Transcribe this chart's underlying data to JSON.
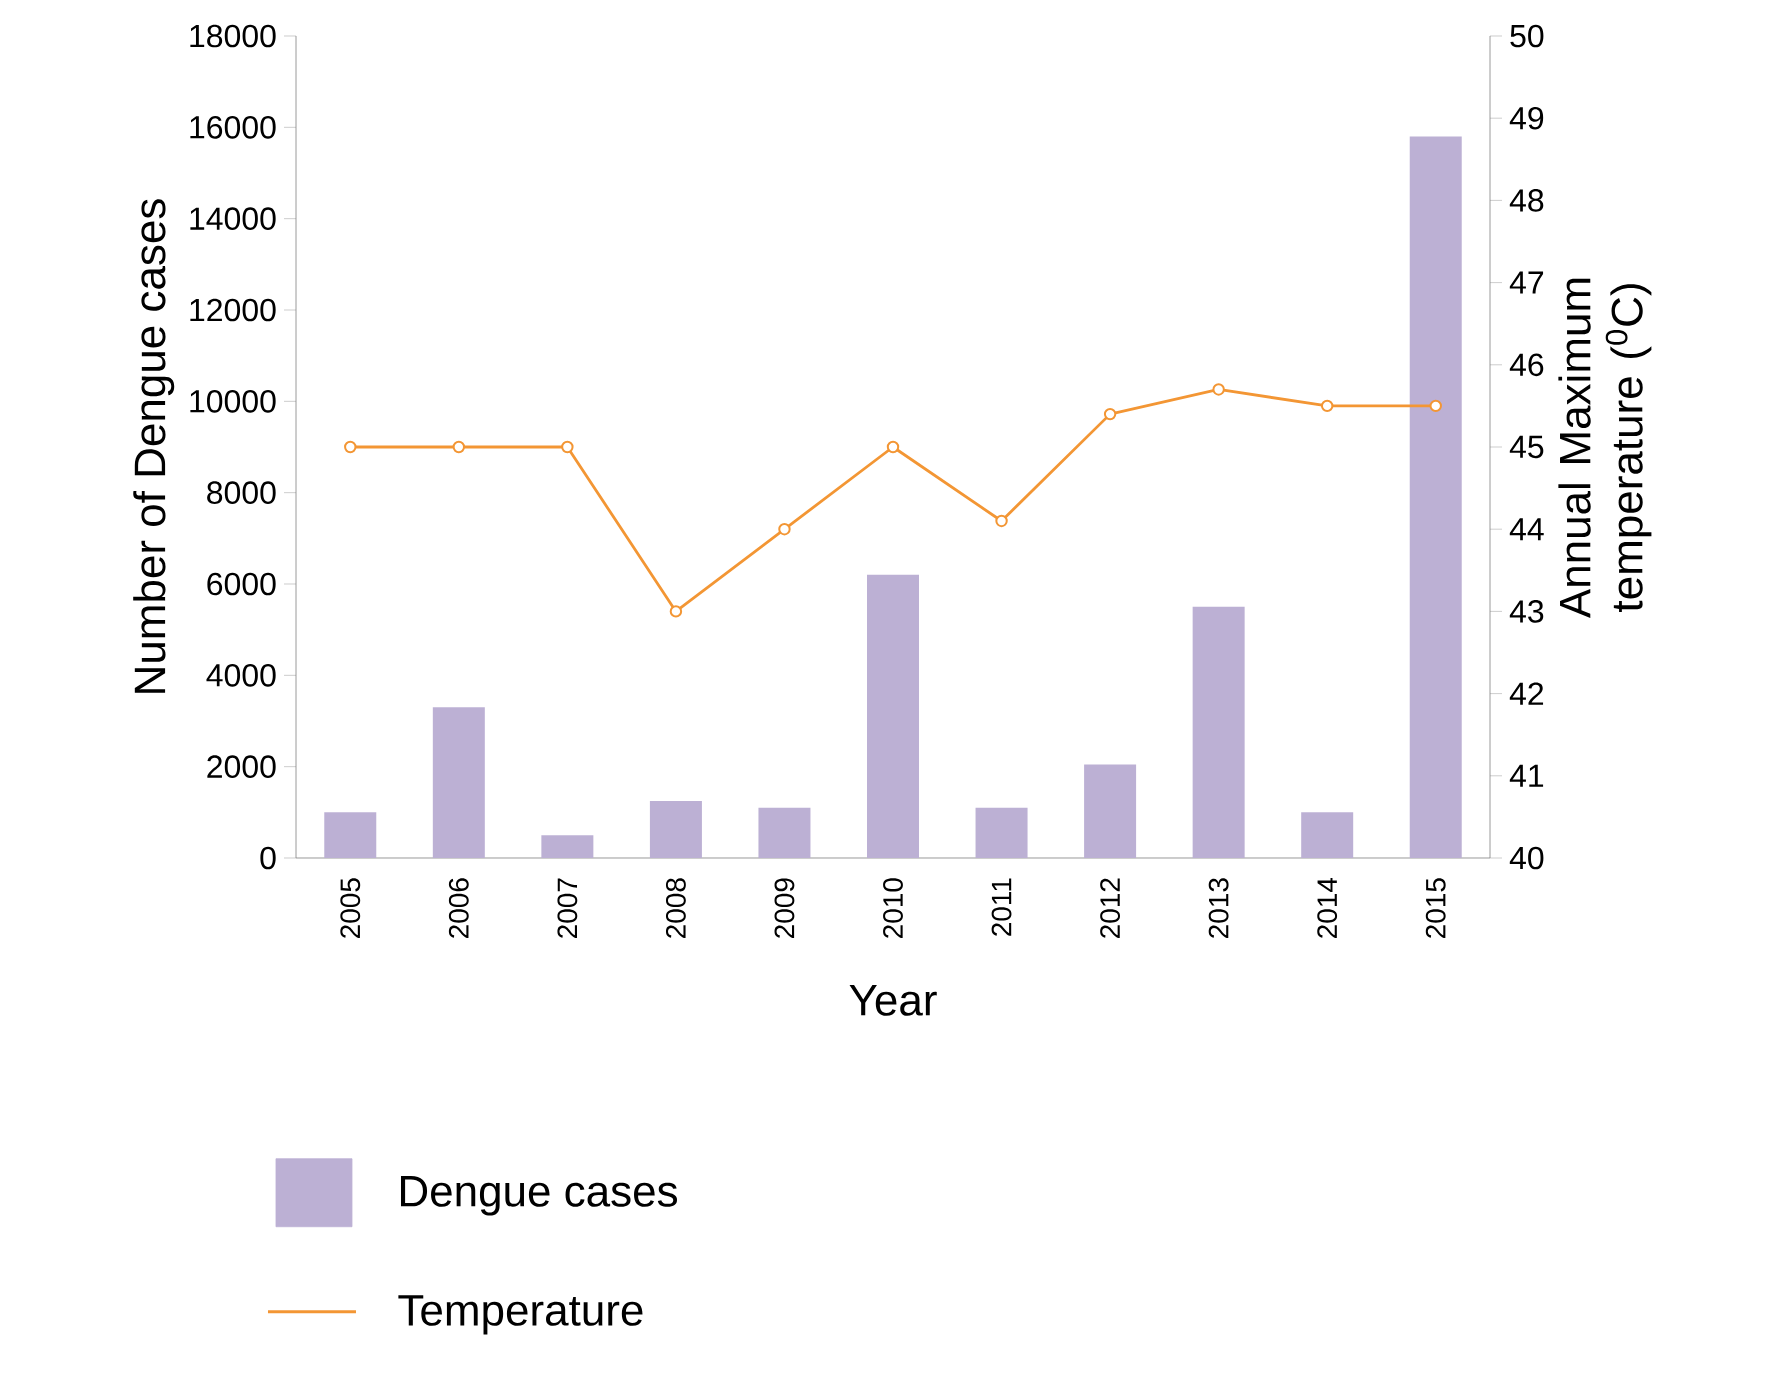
{
  "chart_data": {
    "type": "bar",
    "xlabel": "Year",
    "ylabel": "Number of Dengue cases",
    "y2label": "Annual Maximum temperature ($^{0}$C)",
    "categories": [
      "2005",
      "2006",
      "2007",
      "2008",
      "2009",
      "2010",
      "2011",
      "2012",
      "2013",
      "2014",
      "2015"
    ],
    "series": [
      {
        "name": "Dengue cases",
        "color": "#bcb0d4",
        "values": [
          1000,
          3300,
          500,
          1250,
          1100,
          6200,
          1100,
          2050,
          5500,
          1000,
          15800
        ]
      },
      {
        "name": "Temperature",
        "type": "line",
        "axis": "y2",
        "color": "#f39634",
        "values": [
          45.0,
          45.0,
          45.0,
          43.0,
          44.0,
          45.0,
          44.1,
          45.4,
          45.7,
          45.5,
          45.5
        ]
      }
    ],
    "ylim": [
      0,
      18000
    ],
    "yticks": [
      0,
      2000,
      4000,
      6000,
      8000,
      10000,
      12000,
      14000,
      16000,
      18000
    ],
    "y2lim": [
      40,
      50
    ],
    "y2ticks": [
      40,
      41,
      42,
      43,
      44,
      45,
      46,
      47,
      48,
      49,
      50
    ],
    "marker": "circle",
    "grid": false,
    "legend": "bottom"
  }
}
